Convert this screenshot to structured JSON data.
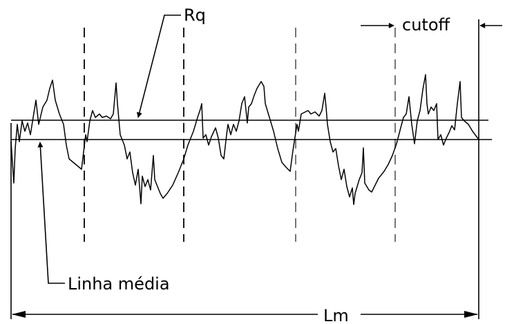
{
  "labels": {
    "rq": "Rq",
    "cutoff": "cutoff",
    "mean_line": "Linha média",
    "measurement_length": "Lm"
  },
  "colors": {
    "ink": "#000000",
    "background": "#ffffff"
  }
}
